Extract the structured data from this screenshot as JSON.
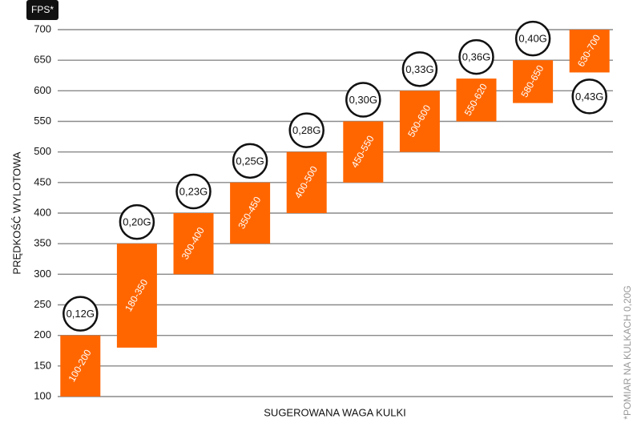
{
  "chart_data": {
    "type": "range_bar",
    "unit_label": "FPS*",
    "y_label": "PRĘDKOŚĆ WYLOTOWA",
    "x_label": "SUGEROWANA WAGA KULKI",
    "note": "*POMIAR NA KULKACH 0,20G",
    "categories": [
      "0,12G",
      "0,20G",
      "0,23G",
      "0,25G",
      "0,28G",
      "0,30G",
      "0,33G",
      "0,36G",
      "0,40G",
      "0,43G"
    ],
    "low": [
      100,
      180,
      300,
      350,
      400,
      450,
      500,
      550,
      580,
      630
    ],
    "high": [
      200,
      350,
      400,
      450,
      500,
      550,
      600,
      620,
      650,
      700
    ],
    "bar_labels": [
      "100-200",
      "180-350",
      "300-400",
      "350-450",
      "400-500",
      "450-550",
      "500-600",
      "550-620",
      "580-650",
      "630-700"
    ],
    "color": "#ff6600",
    "ylim": [
      100,
      700
    ],
    "yticks": [
      100,
      150,
      200,
      250,
      300,
      350,
      400,
      450,
      500,
      550,
      600,
      650,
      700
    ],
    "grid": true
  }
}
